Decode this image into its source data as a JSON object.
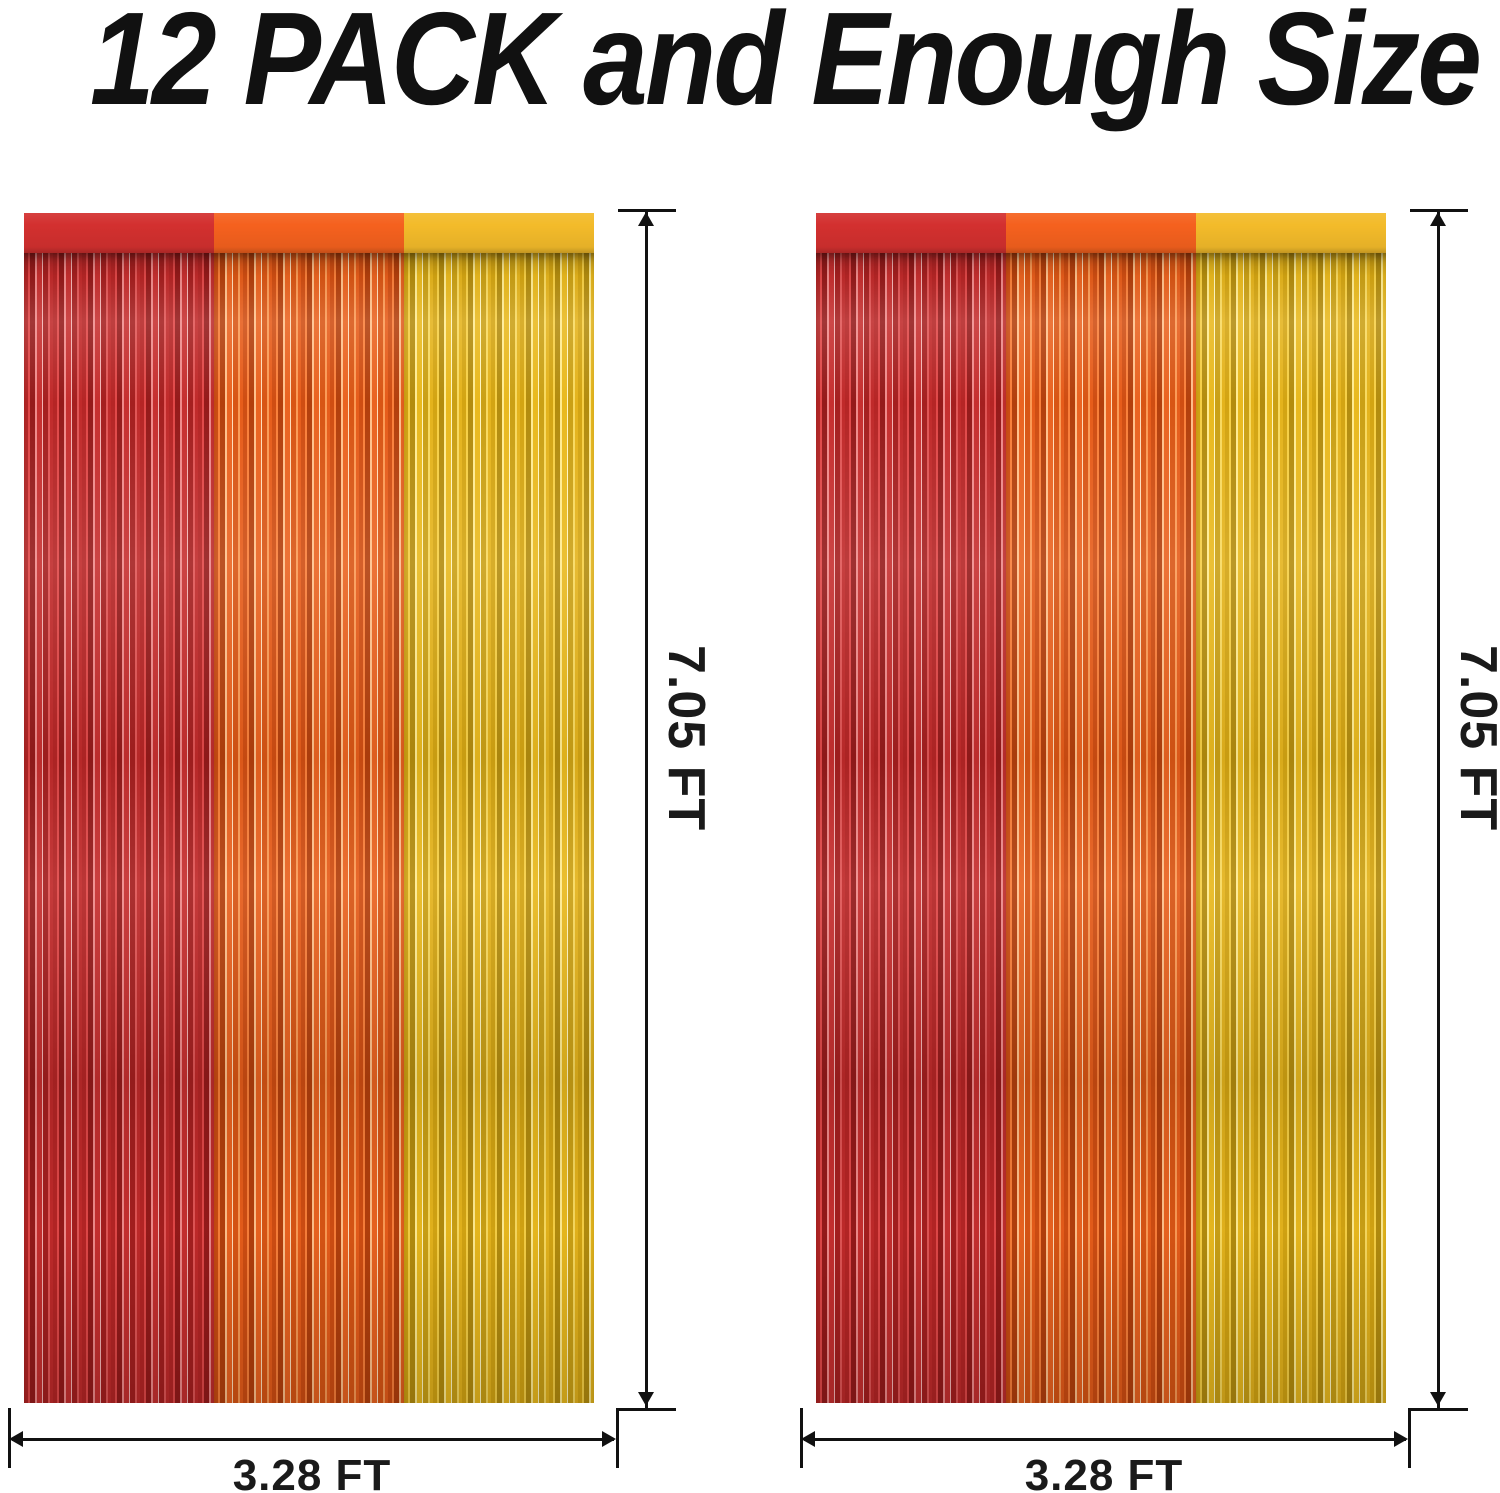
{
  "title": "12 PACK and Enough Size",
  "colors": {
    "red": "#d3302f",
    "orange": "#f5611e",
    "yellow": "#f3bb2a",
    "line": "#111111"
  },
  "units": [
    {
      "height_label": "7.05 FT",
      "width_label": "3.28 FT",
      "panels": [
        "red foil fringe",
        "orange foil fringe",
        "yellow foil fringe"
      ]
    },
    {
      "height_label": "7.05 FT",
      "width_label": "3.28 FT",
      "panels": [
        "red foil fringe",
        "orange foil fringe",
        "yellow foil fringe"
      ]
    }
  ]
}
